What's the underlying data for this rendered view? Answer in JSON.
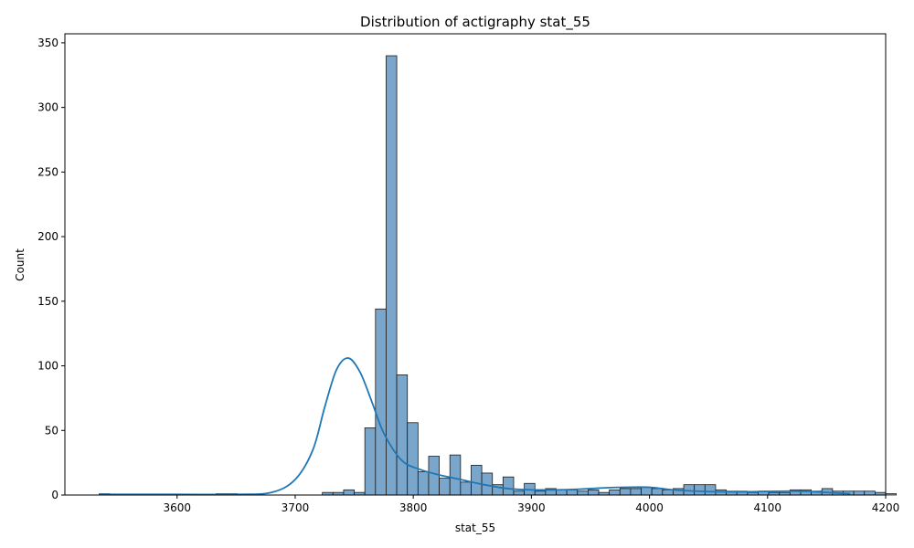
{
  "chart_data": {
    "type": "bar",
    "title": "Distribution of actigraphy stat_55",
    "xlabel": "stat_55",
    "ylabel": "Count",
    "xlim": [
      3505,
      4200
    ],
    "ylim": [
      0,
      357
    ],
    "xticks": [
      3600,
      3700,
      3800,
      3900,
      4000,
      4100,
      4200
    ],
    "yticks": [
      0,
      50,
      100,
      150,
      200,
      250,
      300,
      350
    ],
    "grid": false,
    "colors": {
      "bar_fill": "#7aa6cc",
      "bar_edge": "#1a1a1a",
      "kde_line": "#1f77b4"
    },
    "bin_start": 3534,
    "bin_width": 9,
    "values": [
      1,
      0,
      0,
      0,
      0,
      0,
      0,
      0,
      0,
      0,
      0,
      1,
      1,
      0,
      0,
      0,
      0,
      0,
      0,
      0,
      0,
      2,
      2,
      4,
      2,
      52,
      144,
      340,
      93,
      56,
      18,
      30,
      13,
      31,
      10,
      23,
      17,
      8,
      14,
      3,
      9,
      3,
      5,
      4,
      4,
      3,
      4,
      2,
      4,
      5,
      5,
      6,
      5,
      4,
      5,
      8,
      8,
      8,
      4,
      3,
      3,
      2,
      3,
      2,
      2,
      4,
      4,
      3,
      5,
      3,
      3,
      3,
      3,
      2,
      1
    ],
    "kde": {
      "x": [
        3534,
        3600,
        3650,
        3680,
        3700,
        3715,
        3725,
        3735,
        3745,
        3755,
        3765,
        3775,
        3790,
        3805,
        3820,
        3840,
        3860,
        3880,
        3900,
        3920,
        3940,
        3960,
        3980,
        4000,
        4020,
        4040,
        4060,
        4080,
        4100,
        4120,
        4140,
        4160,
        4170
      ],
      "y": [
        0.5,
        0.5,
        0.5,
        2,
        12,
        35,
        68,
        97,
        106,
        95,
        72,
        48,
        27,
        20,
        16,
        12,
        8,
        5,
        4,
        4,
        4.5,
        5.5,
        6,
        6,
        4,
        3,
        2.5,
        2.5,
        2.8,
        3,
        2.5,
        1.5,
        1
      ]
    }
  }
}
